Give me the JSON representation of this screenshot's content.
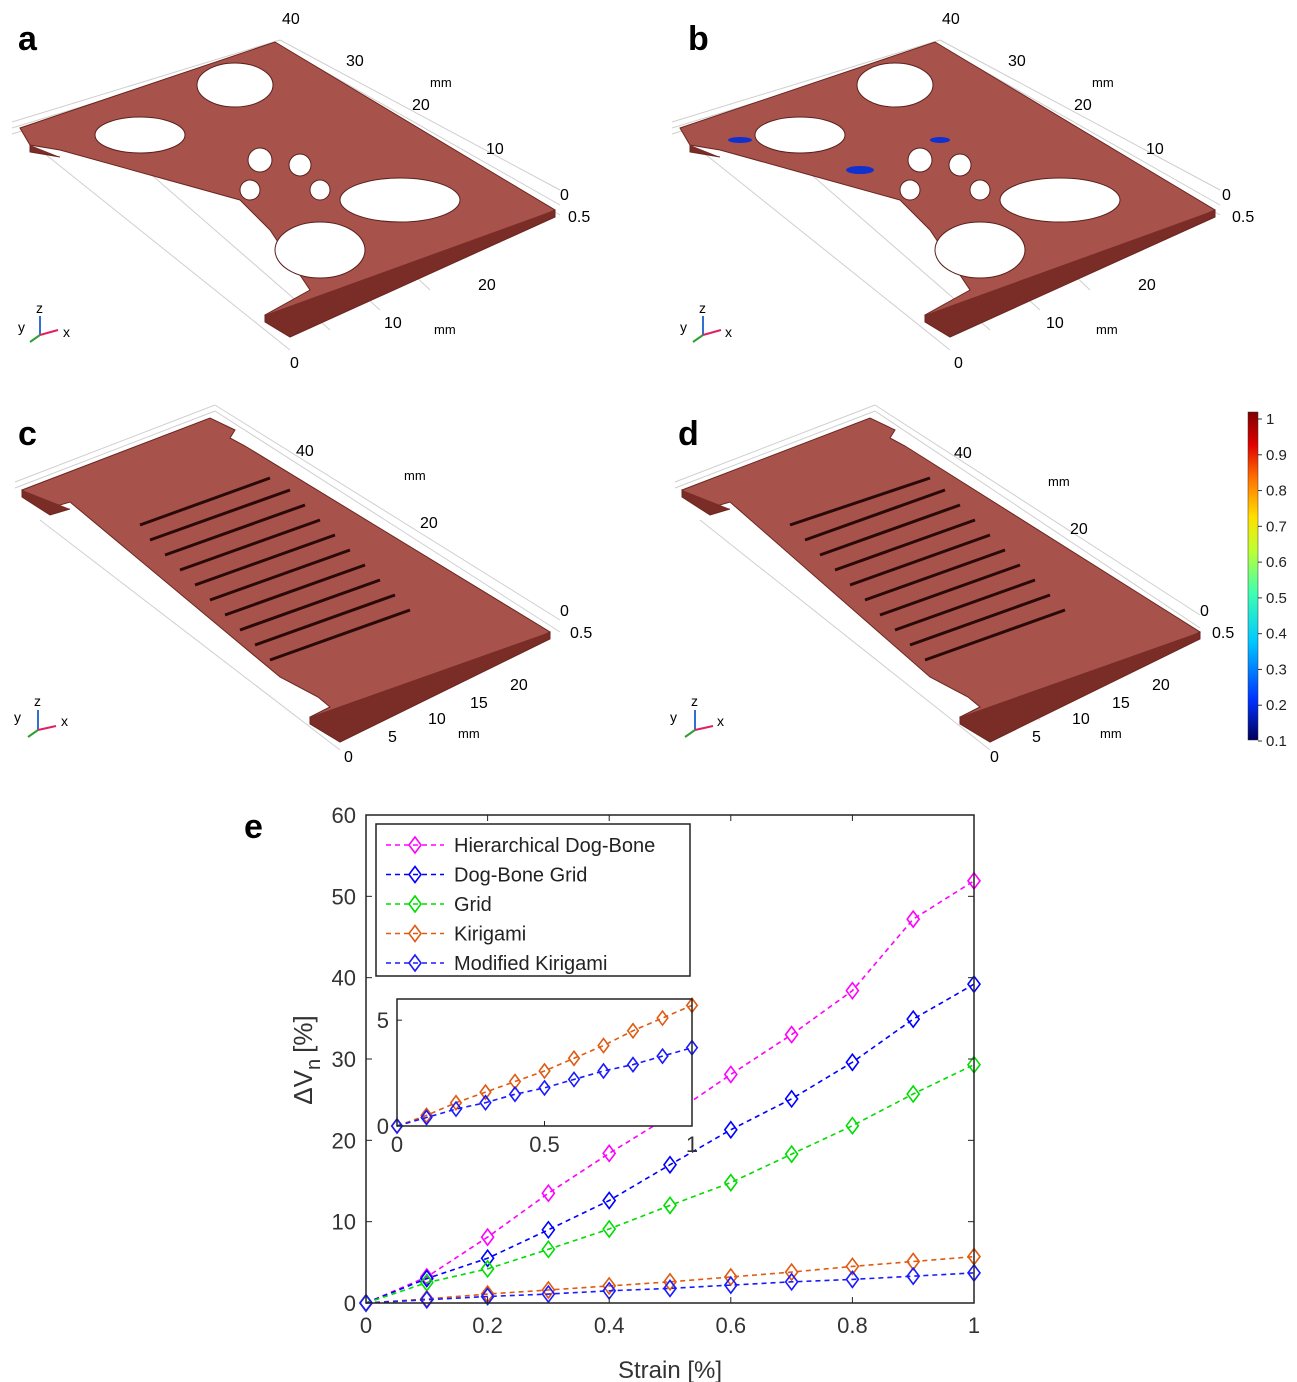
{
  "panels": {
    "a": {
      "label": "a",
      "unit_upper": "mm",
      "unit_lower": "mm",
      "ticks_upper": [
        "40",
        "30",
        "20",
        "10",
        "0"
      ],
      "tick_z": "0.5",
      "ticks_lower": [
        "20",
        "10",
        "0"
      ]
    },
    "b": {
      "label": "b",
      "unit_upper": "mm",
      "unit_lower": "mm",
      "ticks_upper": [
        "40",
        "30",
        "20",
        "10",
        "0"
      ],
      "tick_z": "0.5",
      "ticks_lower": [
        "20",
        "10",
        "0"
      ]
    },
    "c": {
      "label": "c",
      "unit_upper": "mm",
      "unit_lower": "mm",
      "ticks_upper": [
        "40",
        "20",
        "0"
      ],
      "tick_z": "0.5",
      "ticks_lower": [
        "20",
        "15",
        "10",
        "5",
        "0"
      ]
    },
    "d": {
      "label": "d",
      "unit_upper": "mm",
      "unit_lower": "mm",
      "ticks_upper": [
        "40",
        "20",
        "0"
      ],
      "tick_z": "0.5",
      "ticks_lower": [
        "20",
        "15",
        "10",
        "5",
        "0"
      ]
    },
    "triad": {
      "y": "y",
      "z": "z",
      "x": "x"
    }
  },
  "colorbar": {
    "ticks": [
      "1",
      "0.9",
      "0.8",
      "0.7",
      "0.6",
      "0.5",
      "0.4",
      "0.3",
      "0.2",
      "0.1"
    ],
    "range": [
      0.1,
      1
    ]
  },
  "colors": {
    "solid": "#a8524c",
    "solid_dark": "#7a2c26",
    "Hierarchical Dog-Bone": "#ff00ff",
    "Dog-Bone Grid": "#0000ff",
    "Grid": "#00dd00",
    "Kirigami": "#e05a10",
    "Modified Kirigami": "#1a1aff"
  },
  "chart_label": "e",
  "chart_data": {
    "type": "line",
    "xlabel": "Strain [%]",
    "ylabel": "ΔV",
    "ylabel_sub": "n",
    "ylabel_unit": "[%]",
    "xlim": [
      0,
      1
    ],
    "ylim": [
      0,
      60
    ],
    "xticks": [
      "0",
      "0.2",
      "0.4",
      "0.6",
      "0.8",
      "1"
    ],
    "yticks": [
      "0",
      "10",
      "20",
      "30",
      "40",
      "50",
      "60"
    ],
    "marker": "diamond",
    "line_style": "dashed",
    "legend_position": "top-left",
    "x": [
      0,
      0.1,
      0.2,
      0.3,
      0.4,
      0.5,
      0.6,
      0.7,
      0.8,
      0.9,
      1.0
    ],
    "series": [
      {
        "name": "Hierarchical Dog-Bone",
        "values": [
          0,
          3.2,
          8.1,
          13.5,
          18.4,
          23.0,
          28.1,
          33.0,
          38.4,
          47.2,
          51.9
        ]
      },
      {
        "name": "Dog-Bone Grid",
        "values": [
          0,
          3.0,
          5.5,
          9.0,
          12.6,
          17.0,
          21.3,
          25.1,
          29.6,
          34.9,
          39.2
        ]
      },
      {
        "name": "Grid",
        "values": [
          0,
          2.5,
          4.2,
          6.6,
          9.1,
          12.0,
          14.8,
          18.3,
          21.8,
          25.7,
          29.3
        ]
      },
      {
        "name": "Kirigami",
        "values": [
          0,
          0.5,
          1.1,
          1.6,
          2.1,
          2.6,
          3.2,
          3.8,
          4.5,
          5.1,
          5.7
        ]
      },
      {
        "name": "Modified Kirigami",
        "values": [
          0,
          0.4,
          0.8,
          1.1,
          1.5,
          1.8,
          2.2,
          2.6,
          2.9,
          3.3,
          3.7
        ]
      }
    ],
    "inset": {
      "xlim": [
        0,
        1
      ],
      "ylim": [
        0,
        6
      ],
      "xticks": [
        "0",
        "0.5",
        "1"
      ],
      "yticks": [
        "0",
        "5"
      ],
      "series_names": [
        "Kirigami",
        "Modified Kirigami"
      ]
    }
  }
}
